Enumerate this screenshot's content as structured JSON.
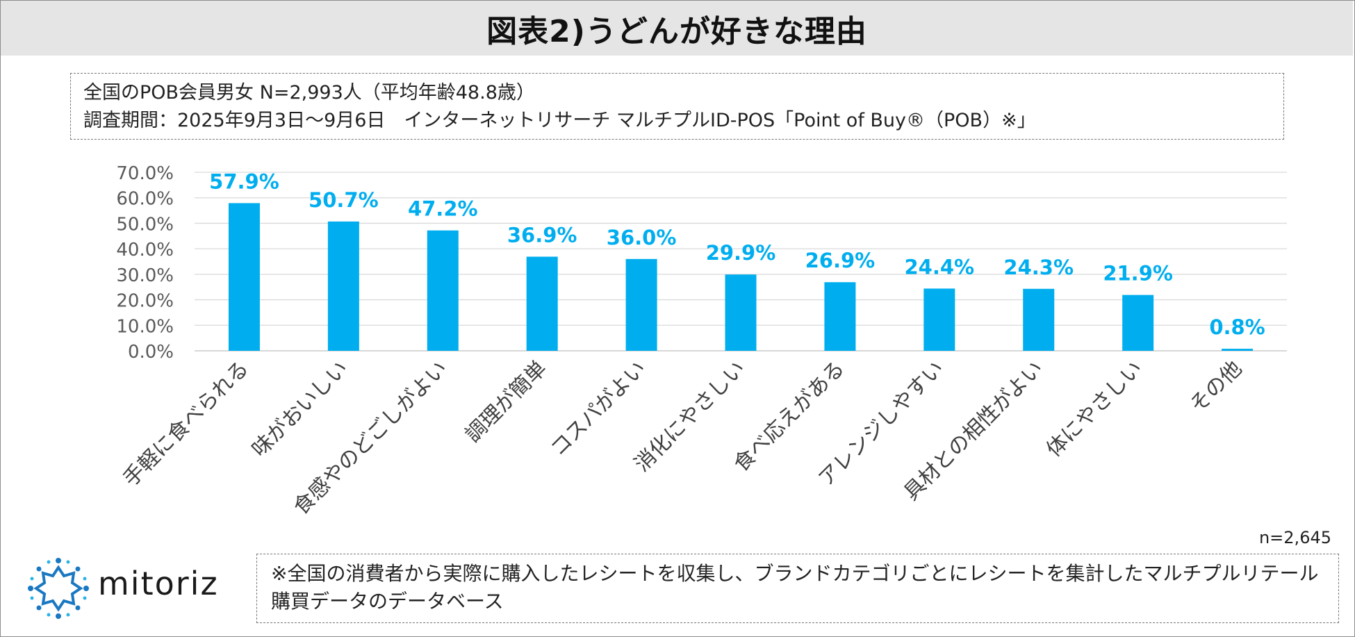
{
  "header": {
    "title": "図表2)うどんが好きな理由"
  },
  "info": {
    "line1": "全国のPOB会員男女 N=2,993人（平均年齢48.8歳）",
    "line2": "調査期間：2025年9月3日～9月6日　インターネットリサーチ マルチプルID-POS「Point of Buy®（POB）※」"
  },
  "sample_note": "n=2,645",
  "footnote": "※全国の消費者から実際に購入したレシートを収集し、ブランドカテゴリごとにレシートを集計したマルチプルリテール購買データのデータベース",
  "logo": {
    "text": "mitoriz",
    "icon": "sun-burst-logo-icon"
  },
  "colors": {
    "bar": "#00aeef",
    "label": "#00aeef",
    "grid": "#d9d9d9",
    "axis_text": "#595959"
  },
  "chart_data": {
    "type": "bar",
    "title": "",
    "xlabel": "",
    "ylabel": "",
    "categories": [
      "手軽に食べられる",
      "味がおいしい",
      "食感やのどごしがよい",
      "調理が簡単",
      "コスパがよい",
      "消化にやさしい",
      "食べ応えがある",
      "アレンジしやすい",
      "具材との相性がよい",
      "体にやさしい",
      "その他"
    ],
    "values": [
      57.9,
      50.7,
      47.2,
      36.9,
      36.0,
      29.9,
      26.9,
      24.4,
      24.3,
      21.9,
      0.8
    ],
    "value_labels": [
      "57.9%",
      "50.7%",
      "47.2%",
      "36.9%",
      "36.0%",
      "29.9%",
      "26.9%",
      "24.4%",
      "24.3%",
      "21.9%",
      "0.8%"
    ],
    "y_ticks": [
      "0.0%",
      "10.0%",
      "20.0%",
      "30.0%",
      "40.0%",
      "50.0%",
      "60.0%",
      "70.0%"
    ],
    "ylim": [
      0,
      70
    ],
    "grid": true,
    "legend": "none"
  }
}
